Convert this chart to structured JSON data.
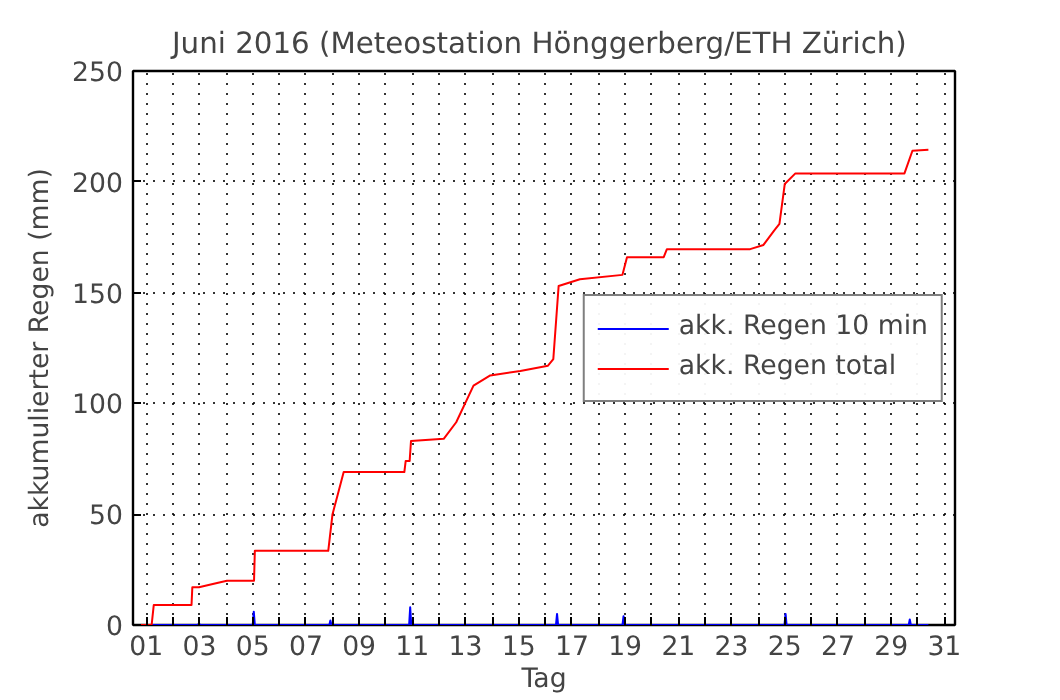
{
  "chart_data": {
    "type": "line",
    "title": "Juni 2016  (Meteostation Hönggerberg/ETH Zürich)",
    "xlabel": "Tag",
    "ylabel": "akkumulierter Regen (mm)",
    "xlim": [
      0.5,
      31.4
    ],
    "ylim": [
      0,
      250
    ],
    "xticks": [
      {
        "value": 1,
        "label": "01"
      },
      {
        "value": 2,
        "label": null
      },
      {
        "value": 3,
        "label": "03"
      },
      {
        "value": 4,
        "label": null
      },
      {
        "value": 5,
        "label": "05"
      },
      {
        "value": 6,
        "label": null
      },
      {
        "value": 7,
        "label": "07"
      },
      {
        "value": 8,
        "label": null
      },
      {
        "value": 9,
        "label": "09"
      },
      {
        "value": 10,
        "label": null
      },
      {
        "value": 11,
        "label": "11"
      },
      {
        "value": 12,
        "label": null
      },
      {
        "value": 13,
        "label": "13"
      },
      {
        "value": 14,
        "label": null
      },
      {
        "value": 15,
        "label": "15"
      },
      {
        "value": 16,
        "label": null
      },
      {
        "value": 17,
        "label": "17"
      },
      {
        "value": 18,
        "label": null
      },
      {
        "value": 19,
        "label": "19"
      },
      {
        "value": 20,
        "label": null
      },
      {
        "value": 21,
        "label": "21"
      },
      {
        "value": 22,
        "label": null
      },
      {
        "value": 23,
        "label": "23"
      },
      {
        "value": 24,
        "label": null
      },
      {
        "value": 25,
        "label": "25"
      },
      {
        "value": 26,
        "label": null
      },
      {
        "value": 27,
        "label": "27"
      },
      {
        "value": 28,
        "label": null
      },
      {
        "value": 29,
        "label": "29"
      },
      {
        "value": 30,
        "label": null
      },
      {
        "value": 31,
        "label": "31"
      }
    ],
    "yticks": [
      0,
      50,
      100,
      150,
      200,
      250
    ],
    "grid": true,
    "legend": "center right",
    "line_style": "solid",
    "series": [
      {
        "name": "akk. Regen 10 min",
        "color": "#0000ff",
        "x": [
          0.6,
          2.95,
          2.98,
          3.01,
          5.0,
          5.04,
          5.08,
          7.88,
          7.92,
          7.96,
          10.88,
          10.92,
          10.96,
          16.4,
          16.44,
          16.48,
          18.9,
          18.94,
          18.98,
          24.99,
          25.03,
          25.07,
          29.66,
          29.7,
          29.74,
          30.4
        ],
        "values": [
          0,
          0,
          1,
          0,
          0,
          6,
          0,
          0,
          2,
          0,
          0,
          8,
          0,
          0,
          5,
          0,
          0,
          4,
          0,
          0,
          5,
          0,
          0,
          2.5,
          0,
          0
        ]
      },
      {
        "name": "akk. Regen total",
        "color": "#ff0000",
        "x": [
          0.6,
          1.2,
          1.28,
          2.7,
          2.73,
          2.98,
          3.5,
          4.03,
          5.05,
          5.08,
          7.84,
          8.0,
          8.2,
          8.42,
          10.7,
          10.75,
          10.9,
          10.95,
          12.18,
          12.65,
          13.3,
          13.93,
          15.06,
          16.1,
          16.3,
          16.5,
          17.3,
          18.9,
          19.07,
          20.45,
          20.57,
          23.7,
          24.2,
          24.6,
          24.8,
          25.0,
          25.4,
          29.5,
          29.8,
          30.4
        ],
        "values": [
          0,
          0,
          9,
          9,
          17,
          17,
          18.5,
          20,
          20,
          33.5,
          33.5,
          50,
          59,
          69,
          69,
          74,
          74,
          83,
          84,
          91.5,
          108,
          112.6,
          114.6,
          117,
          120,
          153,
          156,
          158,
          166,
          166,
          169.6,
          169.6,
          171.5,
          178,
          181,
          199,
          203.8,
          203.8,
          214,
          214.5
        ]
      }
    ]
  }
}
